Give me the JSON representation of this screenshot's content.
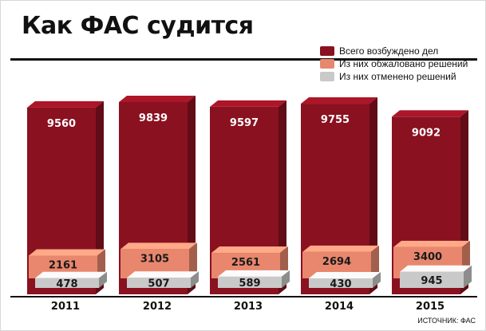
{
  "title": "Как ФАС судится",
  "source": "ИСТОЧНИК: ФАС",
  "colors": {
    "total": "#8a1120",
    "appealed": "#e8876d",
    "cancelled": "#c9c9c9",
    "axis": "#111111"
  },
  "legend": [
    {
      "label": "Всего возбуждено дел",
      "color": "#8a1120"
    },
    {
      "label": "Из них обжаловано решений",
      "color": "#e8876d"
    },
    {
      "label": "Из них отменено решений",
      "color": "#c9c9c9"
    }
  ],
  "chart_data": {
    "type": "bar",
    "title": "Как ФАС судится",
    "categories": [
      "2011",
      "2012",
      "2013",
      "2014",
      "2015"
    ],
    "series": [
      {
        "name": "Всего возбуждено дел",
        "values": [
          9560,
          9839,
          9597,
          9755,
          9092
        ]
      },
      {
        "name": "Из них обжаловано решений",
        "values": [
          2161,
          3105,
          2561,
          2694,
          3400
        ]
      },
      {
        "name": "Из них отменено решений",
        "values": [
          478,
          507,
          589,
          430,
          945
        ]
      }
    ],
    "grid": false,
    "legend_position": "top-right"
  }
}
